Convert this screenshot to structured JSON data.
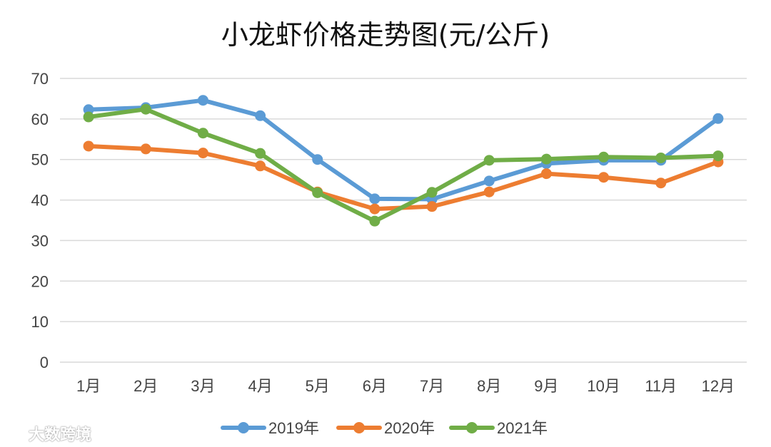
{
  "chart_data": {
    "type": "line",
    "title": "小龙虾价格走势图(元/公斤)",
    "categories": [
      "1月",
      "2月",
      "3月",
      "4月",
      "5月",
      "6月",
      "7月",
      "8月",
      "9月",
      "10月",
      "11月",
      "12月"
    ],
    "ylim": [
      0,
      70
    ],
    "yticks": [
      "0",
      "10",
      "20",
      "30",
      "40",
      "50",
      "60",
      "70"
    ],
    "grid": true,
    "legend_position": "bottom",
    "series": [
      {
        "name": "2019年",
        "color": "#5b9bd5",
        "values": [
          62.3,
          62.8,
          64.6,
          60.8,
          50.0,
          40.3,
          40.2,
          44.7,
          49.0,
          49.8,
          49.8,
          60.1
        ]
      },
      {
        "name": "2020年",
        "color": "#ed7d31",
        "values": [
          53.3,
          52.6,
          51.6,
          48.4,
          42.0,
          37.8,
          38.4,
          42.0,
          46.5,
          45.6,
          44.2,
          49.4
        ]
      },
      {
        "name": "2021年",
        "color": "#70ad47",
        "values": [
          60.5,
          62.4,
          56.5,
          51.5,
          41.8,
          34.8,
          41.9,
          49.8,
          50.1,
          50.6,
          50.4,
          50.9
        ]
      }
    ]
  },
  "watermark": {
    "text": "大数跨境",
    "icon": "weibo-logo-icon"
  }
}
